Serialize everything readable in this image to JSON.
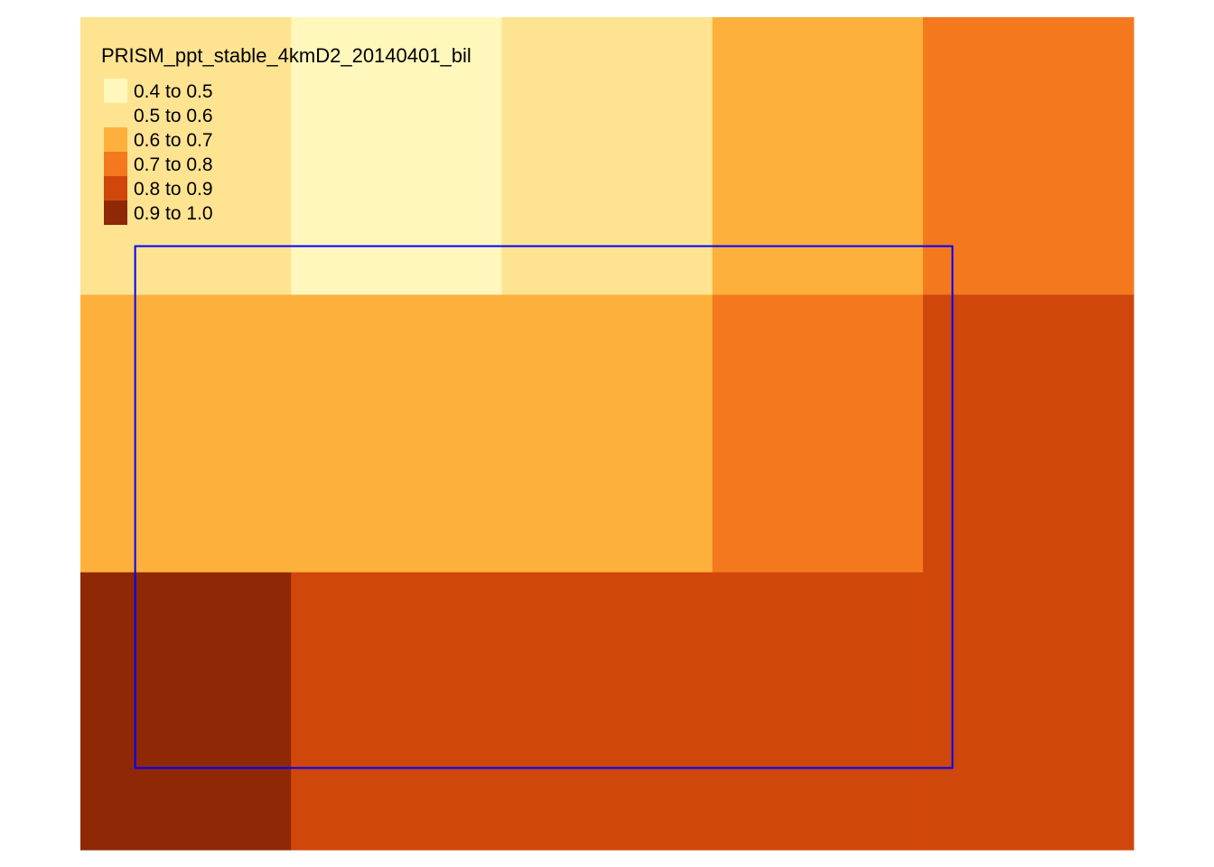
{
  "map": {
    "grid": {
      "ncols": 5,
      "nrows": 3,
      "cells": [
        [
          1,
          0,
          1,
          2,
          3
        ],
        [
          2,
          2,
          2,
          3,
          4
        ],
        [
          5,
          4,
          4,
          4,
          4
        ]
      ]
    },
    "bbox_overlay": {
      "color": "#0000ff",
      "col_start": 0.26,
      "col_end": 4.14,
      "row_start": 0.825,
      "row_end": 2.705
    }
  },
  "legend": {
    "title": "PRISM_ppt_stable_4kmD2_20140401_bil",
    "placement": "top-left",
    "classes": [
      {
        "label": "0.4 to 0.5",
        "color": "#fff7bc"
      },
      {
        "label": "0.5 to 0.6",
        "color": "#fee391"
      },
      {
        "label": "0.6 to 0.7",
        "color": "#fdb13c"
      },
      {
        "label": "0.7 to 0.8",
        "color": "#f4791e"
      },
      {
        "label": "0.8 to 0.9",
        "color": "#d0470c"
      },
      {
        "label": "0.9 to 1.0",
        "color": "#8f2805"
      }
    ]
  }
}
